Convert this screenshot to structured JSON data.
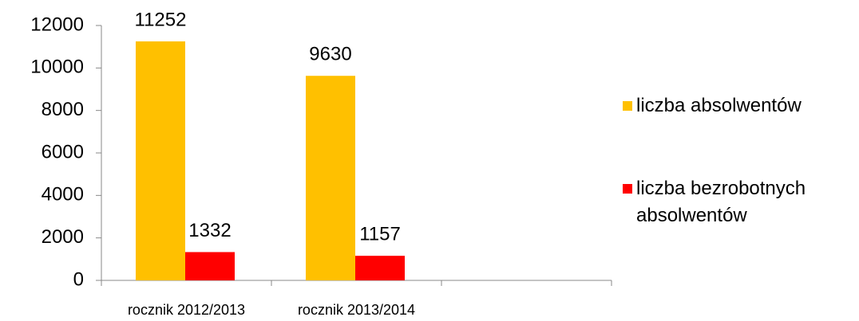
{
  "chart_data": {
    "type": "bar",
    "categories": [
      "rocznik 2012/2013",
      "rocznik 2013/2014",
      null
    ],
    "series": [
      {
        "name": "liczba absolwentów",
        "color": "#ffc000",
        "values": [
          11252,
          9630,
          null
        ]
      },
      {
        "name": "liczba bezrobotnych absolwentów",
        "color": "#ff0000",
        "values": [
          1332,
          1157,
          null
        ]
      }
    ],
    "ylim": [
      0,
      12000
    ],
    "yticks": [
      0,
      2000,
      4000,
      6000,
      8000,
      10000,
      12000
    ],
    "legend": "right"
  }
}
